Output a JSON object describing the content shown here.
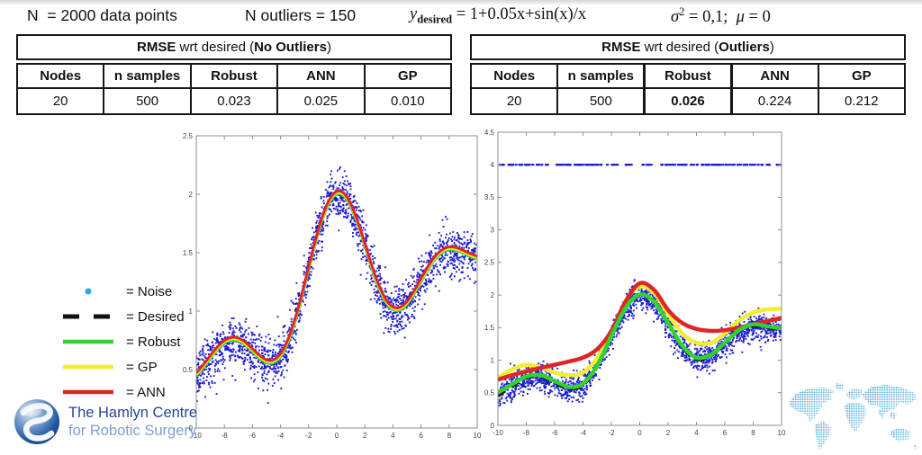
{
  "slide": {
    "header": {
      "n_points": "N  = 2000 data points",
      "n_outliers": "N outliers = 150",
      "formula_runs": [
        {
          "t": "y",
          "i": true
        },
        {
          "t": "desired",
          "sub": true,
          "b": true
        },
        {
          "t": " = 1+0.05x+sin(x)/x"
        }
      ],
      "params_runs": [
        {
          "t": "σ",
          "i": true
        },
        {
          "t": "2",
          "sup": true
        },
        {
          "t": " = 0,1;  "
        },
        {
          "t": "μ",
          "i": true
        },
        {
          "t": " = 0"
        }
      ]
    }
  },
  "tables": [
    {
      "title_runs": [
        {
          "t": "RMSE",
          "b": true
        },
        {
          "t": " wrt desired ("
        },
        {
          "t": "No Outliers",
          "b": true
        },
        {
          "t": ")"
        }
      ],
      "columns": [
        "Nodes",
        "n samples",
        "Robust",
        "ANN",
        "GP"
      ],
      "rows": [
        [
          {
            "t": "20"
          },
          {
            "t": "500"
          },
          {
            "t": "0.023"
          },
          {
            "t": "0.025"
          },
          {
            "t": "0.010"
          }
        ]
      ],
      "highlight_col": null
    },
    {
      "title_runs": [
        {
          "t": "RMSE",
          "b": true
        },
        {
          "t": " wrt desired ("
        },
        {
          "t": "Outliers",
          "b": true
        },
        {
          "t": ")"
        }
      ],
      "columns": [
        "Nodes",
        "n samples",
        "Robust",
        "ANN",
        "GP"
      ],
      "rows": [
        [
          {
            "t": "20"
          },
          {
            "t": "500"
          },
          {
            "t": "0.026",
            "b": true
          },
          {
            "t": "0.224"
          },
          {
            "t": "0.212"
          }
        ]
      ],
      "highlight_col": 2
    }
  ],
  "legend": {
    "items": [
      {
        "label": "= Noise",
        "swatch": "dot",
        "color": "#29abe2"
      },
      {
        "label": "= Desired",
        "swatch": "dashed",
        "color": "#111111"
      },
      {
        "label": "= Robust",
        "swatch": "line",
        "color": "#2fd42f"
      },
      {
        "label": "= GP",
        "swatch": "line",
        "color": "#f2ee30"
      },
      {
        "label": "= ANN",
        "swatch": "line",
        "color": "#e02525"
      }
    ]
  },
  "chart_data": [
    {
      "type": "scatter",
      "title": "",
      "xlabel": "",
      "ylabel": "",
      "xlim": [
        -10,
        10
      ],
      "ylim": [
        0,
        2.5
      ],
      "xticks": [
        -10,
        -8,
        -6,
        -4,
        -2,
        0,
        2,
        4,
        6,
        8,
        10
      ],
      "yticks": [
        0,
        0.5,
        1,
        1.5,
        2,
        2.5
      ],
      "grid": false,
      "noise": {
        "n": 2000,
        "sigma": 0.105,
        "seed": 7,
        "color": "#1c1cd2"
      },
      "outliers": null,
      "x": [
        -10,
        -9.5,
        -9,
        -8.5,
        -8,
        -7.5,
        -7,
        -6.5,
        -6,
        -5.5,
        -5,
        -4.5,
        -4,
        -3.5,
        -3,
        -2.5,
        -2,
        -1.5,
        -1,
        -0.5,
        0,
        0.5,
        1,
        1.5,
        2,
        2.5,
        3,
        3.5,
        4,
        4.5,
        5,
        5.5,
        6,
        6.5,
        7,
        7.5,
        8,
        8.5,
        9,
        9.5,
        10
      ],
      "series": [
        {
          "name": "Desired",
          "color": "#111111",
          "dash": "10 8",
          "width": 3,
          "values": [
            0.446,
            0.517,
            0.596,
            0.669,
            0.724,
            0.75,
            0.744,
            0.708,
            0.653,
            0.597,
            0.558,
            0.558,
            0.611,
            0.725,
            0.897,
            1.114,
            1.355,
            1.59,
            1.792,
            1.934,
            2.0,
            1.984,
            1.892,
            1.74,
            1.555,
            1.364,
            1.197,
            1.075,
            1.011,
            1.008,
            1.058,
            1.147,
            1.253,
            1.358,
            1.444,
            1.5,
            1.524,
            1.519,
            1.496,
            1.467,
            1.446
          ]
        },
        {
          "name": "Robust",
          "color": "#2fd42f",
          "width": 3,
          "values": [
            0.446,
            0.517,
            0.596,
            0.669,
            0.724,
            0.75,
            0.744,
            0.708,
            0.653,
            0.597,
            0.558,
            0.558,
            0.611,
            0.725,
            0.897,
            1.114,
            1.355,
            1.59,
            1.792,
            1.934,
            2.0,
            1.984,
            1.892,
            1.74,
            1.555,
            1.364,
            1.197,
            1.075,
            1.011,
            1.008,
            1.058,
            1.147,
            1.253,
            1.358,
            1.444,
            1.5,
            1.524,
            1.519,
            1.496,
            1.467,
            1.446
          ]
        },
        {
          "name": "GP",
          "color": "#f2ee30",
          "width": 3,
          "values": [
            0.458,
            0.529,
            0.608,
            0.681,
            0.736,
            0.762,
            0.756,
            0.72,
            0.665,
            0.609,
            0.57,
            0.57,
            0.623,
            0.737,
            0.909,
            1.126,
            1.367,
            1.602,
            1.804,
            1.946,
            2.012,
            1.996,
            1.904,
            1.752,
            1.567,
            1.376,
            1.209,
            1.087,
            1.023,
            1.02,
            1.07,
            1.159,
            1.265,
            1.37,
            1.456,
            1.512,
            1.536,
            1.531,
            1.508,
            1.479,
            1.458
          ]
        },
        {
          "name": "ANN",
          "color": "#e02525",
          "width": 3,
          "values": [
            0.471,
            0.542,
            0.621,
            0.694,
            0.749,
            0.775,
            0.769,
            0.733,
            0.678,
            0.622,
            0.583,
            0.583,
            0.636,
            0.75,
            0.922,
            1.139,
            1.38,
            1.615,
            1.817,
            1.959,
            2.025,
            2.009,
            1.917,
            1.765,
            1.58,
            1.389,
            1.222,
            1.1,
            1.036,
            1.033,
            1.083,
            1.172,
            1.278,
            1.383,
            1.469,
            1.525,
            1.549,
            1.544,
            1.521,
            1.492,
            1.471
          ]
        }
      ]
    },
    {
      "type": "scatter",
      "title": "",
      "xlabel": "",
      "ylabel": "",
      "xlim": [
        -10,
        10
      ],
      "ylim": [
        0,
        4.5
      ],
      "xticks": [
        -10,
        -8,
        -6,
        -4,
        -2,
        0,
        2,
        4,
        6,
        8,
        10
      ],
      "yticks": [
        0,
        0.5,
        1,
        1.5,
        2,
        2.5,
        3,
        3.5,
        4,
        4.5
      ],
      "grid": false,
      "noise": {
        "n": 1850,
        "sigma": 0.105,
        "seed": 11,
        "color": "#1c1cd2"
      },
      "outliers": {
        "n": 150,
        "y": 4,
        "seed": 5,
        "color": "#1c1cd2"
      },
      "x": [
        -10,
        -9,
        -8,
        -7,
        -6,
        -5,
        -4,
        -3,
        -2,
        -1,
        0,
        1,
        2,
        3,
        4,
        5,
        6,
        7,
        8,
        9,
        10
      ],
      "series": [
        {
          "name": "Desired",
          "color": "#111111",
          "dash": "10 8",
          "width": 3,
          "values": [
            0.446,
            0.596,
            0.724,
            0.744,
            0.653,
            0.558,
            0.611,
            0.897,
            1.355,
            1.792,
            2.0,
            1.892,
            1.555,
            1.197,
            1.011,
            1.058,
            1.253,
            1.444,
            1.524,
            1.496,
            1.446
          ]
        },
        {
          "name": "GP",
          "color": "#f2ee30",
          "width": 4.5,
          "values": [
            0.73,
            0.86,
            0.93,
            0.89,
            0.81,
            0.77,
            0.81,
            1.03,
            1.43,
            1.91,
            2.13,
            2.03,
            1.71,
            1.41,
            1.27,
            1.26,
            1.41,
            1.61,
            1.73,
            1.78,
            1.79
          ]
        },
        {
          "name": "ANN",
          "color": "#e02525",
          "width": 4.5,
          "values": [
            0.7,
            0.77,
            0.83,
            0.88,
            0.93,
            0.98,
            1.04,
            1.17,
            1.45,
            1.9,
            2.18,
            2.08,
            1.77,
            1.57,
            1.48,
            1.45,
            1.46,
            1.5,
            1.55,
            1.6,
            1.65
          ]
        },
        {
          "name": "Robust",
          "color": "#2fd42f",
          "width": 4.5,
          "values": [
            0.5,
            0.63,
            0.75,
            0.77,
            0.68,
            0.59,
            0.64,
            0.92,
            1.37,
            1.8,
            2.01,
            1.9,
            1.57,
            1.22,
            1.04,
            1.08,
            1.27,
            1.46,
            1.55,
            1.52,
            1.49
          ]
        }
      ]
    }
  ],
  "logo": {
    "line1": "The Hamlyn Centre",
    "line2": "for Robotic Surgery",
    "color1": "#24459a",
    "color2": "#7e9fd4"
  }
}
